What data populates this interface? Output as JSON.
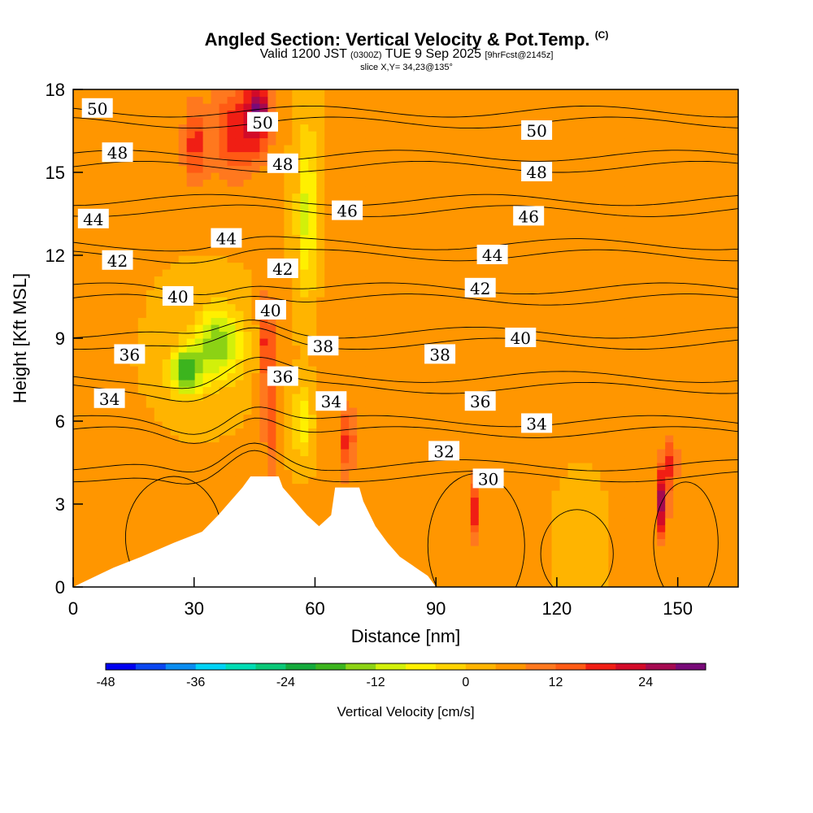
{
  "title": {
    "main": "Angled Section: Vertical Velocity & Pot.Temp.",
    "mark": "(C)",
    "valid_prefix": "Valid 1200 JST",
    "valid_z": "(0300Z)",
    "valid_date": "TUE 9 Sep 2025",
    "forecast": "[9hrFcst@2145z]",
    "slice": "slice X,Y= 34,23@135°"
  },
  "chart_data": {
    "type": "heatmap",
    "title": "Angled Section: Vertical Velocity & Pot.Temp.",
    "xlabel": "Distance [nm]",
    "ylabel": "Height [Kft MSL]",
    "xlim": [
      0,
      165
    ],
    "ylim": [
      0,
      18
    ],
    "x_ticks": [
      0,
      30,
      60,
      90,
      120,
      150
    ],
    "y_ticks": [
      0,
      3,
      6,
      9,
      12,
      15,
      18
    ],
    "field": "Vertical Velocity [cm/s]",
    "background_value": 4,
    "velocity_cells": [
      {
        "x": 46,
        "y": 17.2,
        "value": 27,
        "sx": 3,
        "sy": 1.2
      },
      {
        "x": 40,
        "y": 16.5,
        "value": 18,
        "sx": 6,
        "sy": 1.8
      },
      {
        "x": 30,
        "y": 16,
        "value": 17,
        "sx": 3,
        "sy": 1.5
      },
      {
        "x": 48,
        "y": 9.0,
        "value": 18,
        "sx": 1.8,
        "sy": 1.6
      },
      {
        "x": 49,
        "y": 6.0,
        "value": 15,
        "sx": 1.8,
        "sy": 2
      },
      {
        "x": 68,
        "y": 5.3,
        "value": 17,
        "sx": 1.8,
        "sy": 1.3
      },
      {
        "x": 100,
        "y": 2.8,
        "value": 18,
        "sx": 1.3,
        "sy": 1.2
      },
      {
        "x": 146,
        "y": 3.0,
        "value": 26,
        "sx": 1.5,
        "sy": 1.2
      },
      {
        "x": 148,
        "y": 4.5,
        "value": 17,
        "sx": 2,
        "sy": 1
      },
      {
        "x": 36,
        "y": 8.8,
        "value": -16,
        "sx": 6,
        "sy": 1.3
      },
      {
        "x": 28,
        "y": 7.8,
        "value": -18,
        "sx": 4,
        "sy": 0.9
      },
      {
        "x": 58,
        "y": 13.5,
        "value": -10,
        "sx": 2.5,
        "sy": 3
      },
      {
        "x": 57,
        "y": 6.0,
        "value": -8,
        "sx": 2.5,
        "sy": 1.2
      },
      {
        "x": 90,
        "y": 9.0,
        "value": 7,
        "sx": 25,
        "sy": 6
      },
      {
        "x": 10,
        "y": 2.0,
        "value": 8,
        "sx": 10,
        "sy": 2
      },
      {
        "x": 125,
        "y": 2.0,
        "value": 0,
        "sx": 4,
        "sy": 1.5
      }
    ],
    "terrain_profile": [
      {
        "x": 0,
        "h": 0
      },
      {
        "x": 10,
        "h": 0.7
      },
      {
        "x": 17,
        "h": 1.1
      },
      {
        "x": 25,
        "h": 1.6
      },
      {
        "x": 32,
        "h": 2.0
      },
      {
        "x": 36,
        "h": 2.6
      },
      {
        "x": 39,
        "h": 3.1
      },
      {
        "x": 42,
        "h": 3.6
      },
      {
        "x": 44,
        "h": 4.0
      },
      {
        "x": 51,
        "h": 4.0
      },
      {
        "x": 52,
        "h": 3.6
      },
      {
        "x": 55,
        "h": 3.1
      },
      {
        "x": 58,
        "h": 2.6
      },
      {
        "x": 61,
        "h": 2.2
      },
      {
        "x": 64,
        "h": 2.6
      },
      {
        "x": 65,
        "h": 3.6
      },
      {
        "x": 71,
        "h": 3.6
      },
      {
        "x": 72,
        "h": 3.1
      },
      {
        "x": 75,
        "h": 2.2
      },
      {
        "x": 78,
        "h": 1.6
      },
      {
        "x": 81,
        "h": 1.1
      },
      {
        "x": 85,
        "h": 0.7
      },
      {
        "x": 88,
        "h": 0.4
      },
      {
        "x": 90,
        "h": 0
      }
    ],
    "isentropes": [
      {
        "theta": 30,
        "label": "30"
      },
      {
        "theta": 32,
        "label": "32"
      },
      {
        "theta": 34,
        "label": "34"
      },
      {
        "theta": 36,
        "label": "36"
      },
      {
        "theta": 38,
        "label": "38"
      },
      {
        "theta": 40,
        "label": "40"
      },
      {
        "theta": 42,
        "label": "42"
      },
      {
        "theta": 44,
        "label": "44"
      },
      {
        "theta": 46,
        "label": "46"
      },
      {
        "theta": 48,
        "label": "48"
      },
      {
        "theta": 50,
        "label": "50"
      }
    ],
    "isentrope_labels": [
      {
        "text": "50",
        "x": 6,
        "y": 17.3
      },
      {
        "text": "48",
        "x": 11,
        "y": 15.7
      },
      {
        "text": "44",
        "x": 5,
        "y": 13.3
      },
      {
        "text": "42",
        "x": 11,
        "y": 11.8
      },
      {
        "text": "40",
        "x": 26,
        "y": 10.5
      },
      {
        "text": "36",
        "x": 14,
        "y": 8.4
      },
      {
        "text": "34",
        "x": 9,
        "y": 6.8
      },
      {
        "text": "44",
        "x": 38,
        "y": 12.6
      },
      {
        "text": "50",
        "x": 47,
        "y": 16.8
      },
      {
        "text": "48",
        "x": 52,
        "y": 15.3
      },
      {
        "text": "42",
        "x": 52,
        "y": 11.5
      },
      {
        "text": "40",
        "x": 49,
        "y": 10.0
      },
      {
        "text": "38",
        "x": 62,
        "y": 8.7
      },
      {
        "text": "36",
        "x": 52,
        "y": 7.6
      },
      {
        "text": "34",
        "x": 64,
        "y": 6.7
      },
      {
        "text": "46",
        "x": 68,
        "y": 13.6
      },
      {
        "text": "50",
        "x": 115,
        "y": 16.5
      },
      {
        "text": "48",
        "x": 115,
        "y": 15.0
      },
      {
        "text": "46",
        "x": 113,
        "y": 13.4
      },
      {
        "text": "44",
        "x": 104,
        "y": 12.0
      },
      {
        "text": "42",
        "x": 101,
        "y": 10.8
      },
      {
        "text": "40",
        "x": 111,
        "y": 9.0
      },
      {
        "text": "38",
        "x": 91,
        "y": 8.4
      },
      {
        "text": "36",
        "x": 101,
        "y": 6.7
      },
      {
        "text": "34",
        "x": 115,
        "y": 5.9
      },
      {
        "text": "32",
        "x": 92,
        "y": 4.9
      },
      {
        "text": "30",
        "x": 103,
        "y": 3.9
      }
    ],
    "colorbar": {
      "title": "Vertical Velocity [cm/s]",
      "levels": [
        -48,
        -44,
        -40,
        -36,
        -32,
        -28,
        -24,
        -20,
        -16,
        -12,
        -8,
        -4,
        0,
        4,
        8,
        12,
        16,
        20,
        24,
        28,
        32
      ],
      "tick_labels": [
        "-48",
        "-36",
        "-24",
        "-12",
        "0",
        "12",
        "24"
      ],
      "tick_values": [
        -48,
        -36,
        -24,
        -12,
        0,
        12,
        24
      ],
      "colors": [
        "#0000f0",
        "#0a46f0",
        "#0a8cf0",
        "#00d2f5",
        "#00dcb4",
        "#0ac878",
        "#14aa3c",
        "#3cb41e",
        "#8cd214",
        "#d2f00a",
        "#fff000",
        "#ffd200",
        "#ffb400",
        "#ff9600",
        "#ff781e",
        "#ff5a14",
        "#f01e14",
        "#d20a28",
        "#a50a50",
        "#780a78"
      ]
    }
  }
}
